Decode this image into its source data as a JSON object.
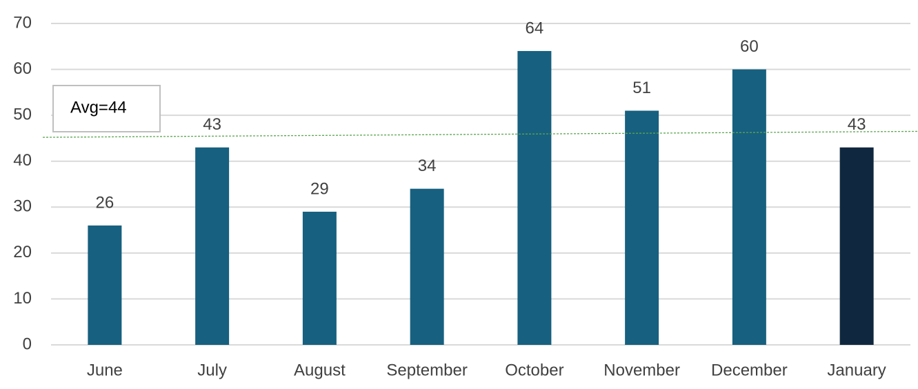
{
  "chart_data": {
    "type": "bar",
    "categories": [
      "June",
      "July",
      "August",
      "September",
      "October",
      "November",
      "December",
      "January"
    ],
    "values": [
      26,
      43,
      29,
      34,
      64,
      51,
      60,
      43
    ],
    "colors": [
      "#17607f",
      "#17607f",
      "#17607f",
      "#17607f",
      "#17607f",
      "#17607f",
      "#17607f",
      "#10283f"
    ],
    "ylim": [
      0,
      70
    ],
    "yticks": [
      0,
      10,
      20,
      30,
      40,
      50,
      60,
      70
    ],
    "grid": true,
    "data_labels": true,
    "annotation": "Avg=44",
    "trendline": {
      "color": "#5aa84f",
      "values": [
        45.2,
        46.5
      ]
    }
  }
}
